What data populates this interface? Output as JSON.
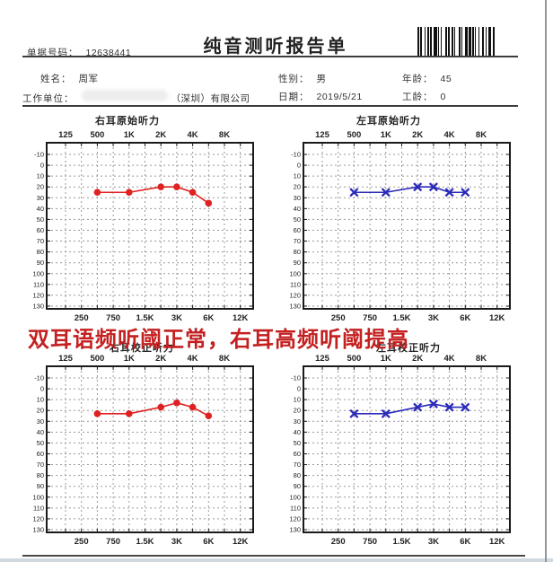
{
  "page": {
    "doc_number_label": "单据号码：",
    "doc_number": "12638441",
    "title": "纯音测听报告单",
    "fields": {
      "name_label": "姓名：",
      "name": "周军",
      "gender_label": "性别：",
      "gender": "男",
      "age_label": "年龄：",
      "age": "45",
      "company_label": "工作单位：",
      "company_visible": "（深圳）有限公司",
      "date_label": "日期：",
      "date": "2019/5/21",
      "work_years_label": "工龄：",
      "work_years": "0"
    },
    "annotation": "双耳语频听阈正常，右耳高频听阈提高",
    "colors": {
      "right_ear": "#e02121",
      "left_ear": "#2a2ab8",
      "annotation": "#c42020",
      "grid": "#999999",
      "axis": "#1a1a1a"
    }
  },
  "chart_data": [
    {
      "type": "line",
      "title": "右耳原始听力",
      "marker": "circle",
      "series_color": "#e02121",
      "x_ticks_top": [
        "125",
        "500",
        "1K",
        "2K",
        "4K",
        "8K"
      ],
      "x_ticks_bottom": [
        "250",
        "750",
        "1.5K",
        "3K",
        "6K",
        "12K"
      ],
      "x_order": [
        "125",
        "250",
        "500",
        "750",
        "1K",
        "1.5K",
        "2K",
        "3K",
        "4K",
        "6K",
        "8K",
        "12K"
      ],
      "ylim": [
        -10,
        130
      ],
      "y_step": 10,
      "grid": true,
      "x": [
        "500",
        "1K",
        "2K",
        "3K",
        "4K",
        "6K"
      ],
      "values": [
        25,
        25,
        20,
        20,
        25,
        35
      ]
    },
    {
      "type": "line",
      "title": "左耳原始听力",
      "marker": "x",
      "series_color": "#2a2ab8",
      "x_ticks_top": [
        "125",
        "500",
        "1K",
        "2K",
        "4K",
        "8K"
      ],
      "x_ticks_bottom": [
        "250",
        "750",
        "1.5K",
        "3K",
        "6K",
        "12K"
      ],
      "x_order": [
        "125",
        "250",
        "500",
        "750",
        "1K",
        "1.5K",
        "2K",
        "3K",
        "4K",
        "6K",
        "8K",
        "12K"
      ],
      "ylim": [
        -10,
        130
      ],
      "y_step": 10,
      "grid": true,
      "x": [
        "500",
        "1K",
        "2K",
        "3K",
        "4K",
        "6K"
      ],
      "values": [
        25,
        25,
        20,
        20,
        25,
        25
      ]
    },
    {
      "type": "line",
      "title": "右耳校正听力",
      "marker": "circle",
      "series_color": "#e02121",
      "x_ticks_top": [
        "125",
        "500",
        "1K",
        "2K",
        "4K",
        "8K"
      ],
      "x_ticks_bottom": [
        "250",
        "750",
        "1.5K",
        "3K",
        "6K",
        "12K"
      ],
      "x_order": [
        "125",
        "250",
        "500",
        "750",
        "1K",
        "1.5K",
        "2K",
        "3K",
        "4K",
        "6K",
        "8K",
        "12K"
      ],
      "ylim": [
        -10,
        130
      ],
      "y_step": 10,
      "grid": true,
      "x": [
        "500",
        "1K",
        "2K",
        "3K",
        "4K",
        "6K"
      ],
      "values": [
        23,
        23,
        17,
        13,
        17,
        25
      ]
    },
    {
      "type": "line",
      "title": "左耳校正听力",
      "marker": "x",
      "series_color": "#2a2ab8",
      "x_ticks_top": [
        "125",
        "500",
        "1K",
        "2K",
        "4K",
        "8K"
      ],
      "x_ticks_bottom": [
        "250",
        "750",
        "1.5K",
        "3K",
        "6K",
        "12K"
      ],
      "x_order": [
        "125",
        "250",
        "500",
        "750",
        "1K",
        "1.5K",
        "2K",
        "3K",
        "4K",
        "6K",
        "8K",
        "12K"
      ],
      "ylim": [
        -10,
        130
      ],
      "y_step": 10,
      "grid": true,
      "x": [
        "500",
        "1K",
        "2K",
        "3K",
        "4K",
        "6K"
      ],
      "values": [
        23,
        23,
        17,
        14,
        17,
        17
      ]
    }
  ]
}
